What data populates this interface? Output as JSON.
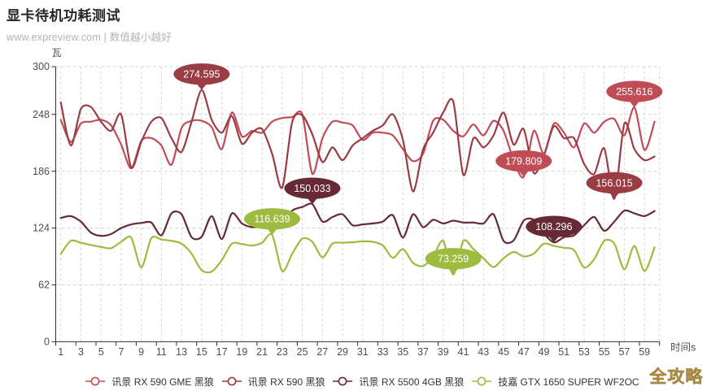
{
  "title": "显卡待机功耗测试",
  "subtitle": "www.expreview.com | 数值越小越好",
  "watermark": "全攻略",
  "colors": {
    "title": "#262626",
    "subtitle": "#b3b3b3",
    "axis": "#2f2f2f",
    "tick_label": "#4d4d4d",
    "grid": "#d4d4d4",
    "legend_text": "#333333",
    "watermark": "#aa8a42",
    "callout_text": "#ffffff"
  },
  "chart_data": {
    "type": "line",
    "smooth": true,
    "title": "显卡待机功耗测试",
    "xlabel": "时间s",
    "ylabel_unit": "瓦",
    "x": [
      1,
      2,
      3,
      4,
      5,
      6,
      7,
      8,
      9,
      10,
      11,
      12,
      13,
      14,
      15,
      16,
      17,
      18,
      19,
      20,
      21,
      22,
      23,
      24,
      25,
      26,
      27,
      28,
      29,
      30,
      31,
      32,
      33,
      34,
      35,
      36,
      37,
      38,
      39,
      40,
      41,
      42,
      43,
      44,
      45,
      46,
      47,
      48,
      49,
      50,
      51,
      52,
      53,
      54,
      55,
      56,
      57,
      58,
      59,
      60
    ],
    "x_tick_labels": [
      1,
      3,
      5,
      7,
      9,
      11,
      13,
      15,
      17,
      19,
      21,
      23,
      25,
      27,
      29,
      31,
      33,
      35,
      37,
      39,
      41,
      43,
      45,
      47,
      49,
      51,
      53,
      55,
      57,
      59
    ],
    "y_ticks": [
      0,
      62,
      124,
      186,
      248,
      300
    ],
    "ylim": [
      0,
      300
    ],
    "grid": true,
    "legend_position": "bottom",
    "series": [
      {
        "name": "讯景 RX 590 GME 黑狼",
        "color": "#c04d56",
        "values": [
          242,
          218,
          238,
          240,
          242,
          236,
          215,
          189,
          219,
          222,
          214,
          193,
          233,
          241,
          241,
          234,
          210,
          250,
          224,
          230,
          228,
          240,
          244,
          245,
          248,
          183,
          222,
          240,
          239,
          236,
          220,
          228,
          228,
          225,
          210,
          197,
          205,
          241,
          242,
          230,
          224,
          237,
          225,
          241,
          230,
          198,
          179.809,
          230,
          205,
          238,
          228,
          212,
          238,
          228,
          240,
          243,
          225,
          255.616,
          209,
          240
        ],
        "max_label": {
          "x": 58,
          "value": 255.616,
          "text": "255.616"
        },
        "min_label": {
          "x": 47,
          "value": 179.809,
          "text": "179.809"
        }
      },
      {
        "name": "讯景 RX 590 黑狼",
        "color": "#9a3c44",
        "values": [
          261,
          214,
          254,
          256,
          240,
          230,
          248,
          190,
          218,
          240,
          244,
          222,
          207,
          240,
          274.595,
          242,
          228,
          246,
          216,
          228,
          232,
          205,
          168,
          240,
          247,
          226,
          196,
          212,
          198,
          214,
          222,
          230,
          236,
          248,
          220,
          164,
          210,
          228,
          250,
          262,
          182,
          222,
          212,
          225,
          250,
          215,
          232,
          184,
          203,
          235,
          222,
          222,
          194,
          183,
          211,
          156.015,
          238,
          210,
          198,
          202
        ],
        "max_label": {
          "x": 15,
          "value": 274.595,
          "text": "274.595"
        },
        "min_label": {
          "x": 56,
          "value": 156.015,
          "text": "156.015"
        }
      },
      {
        "name": "讯景 RX 5500 4GB 黑狼",
        "color": "#652a34",
        "values": [
          135,
          137,
          131,
          119,
          115.5,
          117.5,
          124,
          128,
          129.5,
          130,
          116,
          140,
          139,
          114,
          114.5,
          137,
          112,
          140,
          129,
          125,
          126,
          127,
          128,
          143,
          147,
          150.033,
          131,
          136,
          139,
          127,
          128,
          129,
          131,
          138,
          113.5,
          139,
          125,
          133,
          129,
          132,
          130,
          130,
          129,
          139,
          110,
          110.5,
          132,
          133,
          118,
          108.296,
          114,
          116,
          127,
          136,
          121,
          131,
          143,
          140,
          137,
          142.5
        ],
        "max_label": {
          "x": 26,
          "value": 150.033,
          "text": "150.033"
        },
        "min_label": {
          "x": 50,
          "value": 108.296,
          "text": "108.296"
        }
      },
      {
        "name": "技嘉 GTX 1650 SUPER WF2OC",
        "color": "#9cbb3f",
        "values": [
          96,
          110,
          108,
          105.5,
          103.4,
          102,
          109,
          113.5,
          81,
          113,
          111.5,
          110,
          107,
          96,
          78,
          76.5,
          89,
          107,
          106.5,
          105,
          108,
          116.639,
          77,
          96,
          112.5,
          109,
          92,
          107,
          108,
          108.5,
          109.5,
          109,
          105,
          91.5,
          101,
          86,
          82.5,
          93,
          110,
          73.259,
          110,
          101,
          91,
          81.5,
          91,
          98,
          93,
          96,
          107,
          104.5,
          102.5,
          100,
          81,
          90,
          110,
          107,
          79,
          104.5,
          77,
          103
        ],
        "max_label": {
          "x": 22,
          "value": 116.639,
          "text": "116.639"
        },
        "min_label": {
          "x": 40,
          "value": 73.259,
          "text": "73.259"
        }
      }
    ]
  },
  "legend": {
    "items": [
      {
        "label": "讯景 RX 590 GME 黑狼",
        "color": "#c04d56"
      },
      {
        "label": "讯景 RX 590 黑狼",
        "color": "#9a3c44"
      },
      {
        "label": "讯景 RX 5500 4GB 黑狼",
        "color": "#652a34"
      },
      {
        "label": "技嘉 GTX 1650 SUPER WF2OC",
        "color": "#9cbb3f"
      }
    ]
  }
}
